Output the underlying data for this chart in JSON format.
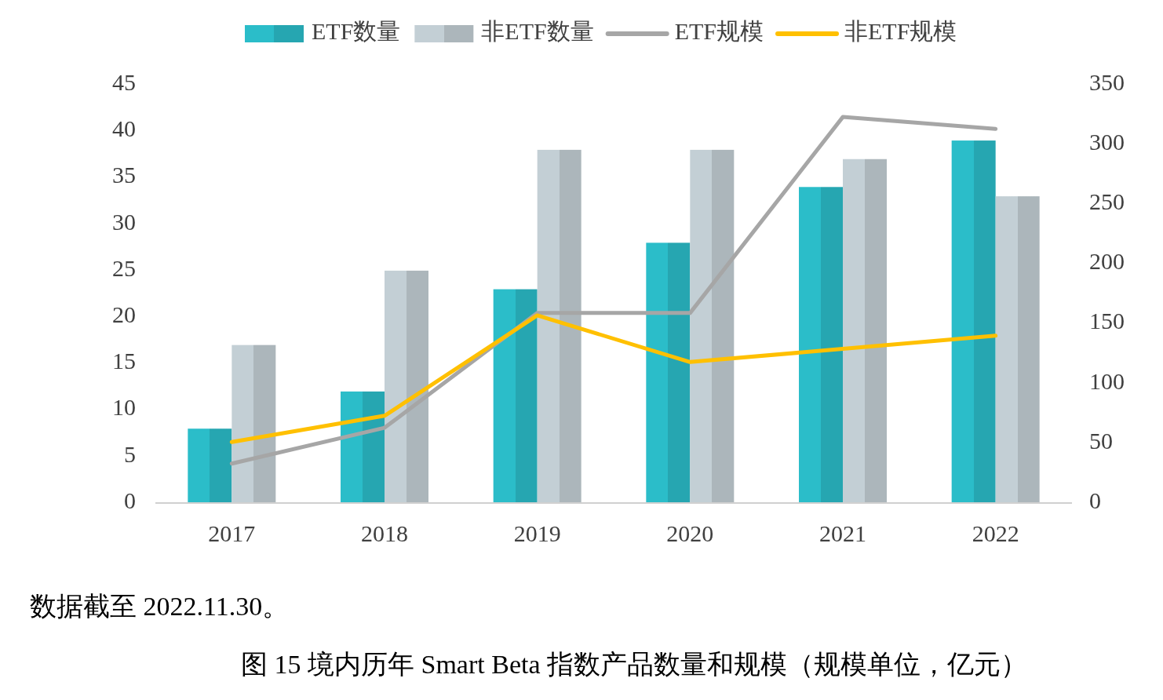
{
  "chart_data": {
    "type": "bar",
    "title": "图 15 境内历年 Smart Beta 指数产品数量和规模（规模单位，亿元）",
    "annotations": [
      "数据截至 2022.11.30。"
    ],
    "categories": [
      "2017",
      "2018",
      "2019",
      "2020",
      "2021",
      "2022"
    ],
    "series": [
      {
        "name": "ETF数量",
        "color": "#2bbdc9",
        "values": [
          8,
          12,
          23,
          28,
          34,
          39
        ]
      },
      {
        "name": "非ETF数量",
        "color": "#c3cfd5",
        "values": [
          17,
          25,
          38,
          38,
          37,
          33
        ]
      },
      {
        "name": "ETF规模",
        "type": "line",
        "axis": "y2",
        "color": "#a6a6a6",
        "values": [
          33,
          63,
          159,
          159,
          323,
          313
        ]
      },
      {
        "name": "非ETF规模",
        "type": "line",
        "axis": "y2",
        "color": "#ffc000",
        "values": [
          51,
          73,
          157,
          118,
          129,
          140
        ]
      }
    ],
    "ylim": [
      0,
      45
    ],
    "yticks": [
      0,
      5,
      10,
      15,
      20,
      25,
      30,
      35,
      40,
      45
    ],
    "y2lim": [
      0,
      350
    ],
    "y2ticks": [
      0,
      50,
      100,
      150,
      200,
      250,
      300,
      350
    ],
    "legend": "top"
  }
}
